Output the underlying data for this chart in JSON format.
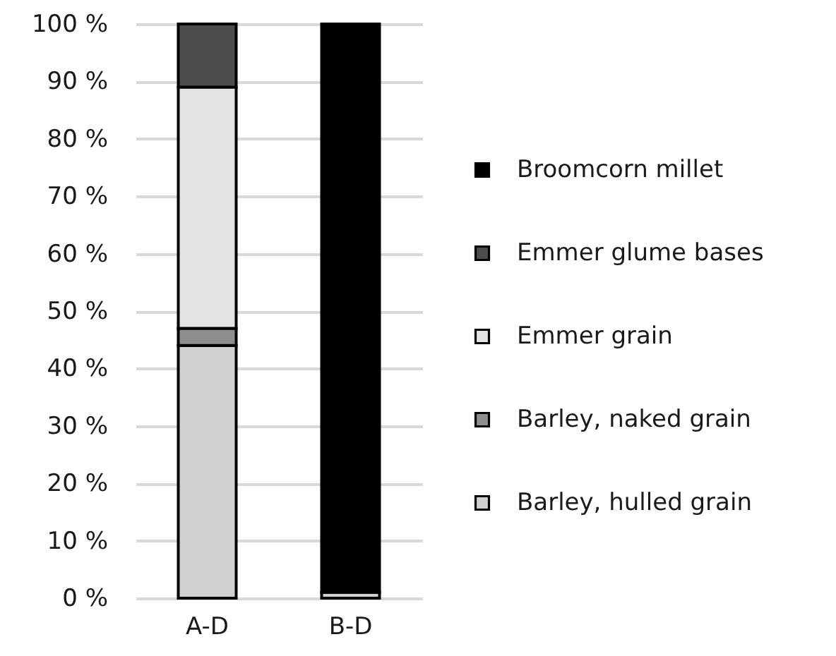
{
  "chart_data": {
    "type": "bar",
    "stacked": true,
    "categories": [
      "A-D",
      "B-D"
    ],
    "series": [
      {
        "name": "Barley, hulled grain",
        "color": "#d0d0d2",
        "values": [
          44,
          1
        ]
      },
      {
        "name": "Barley, naked grain",
        "color": "#8e8e8e",
        "values": [
          3,
          null
        ]
      },
      {
        "name": "Emmer grain",
        "color": "#e4e4e6",
        "values": [
          42,
          null
        ]
      },
      {
        "name": "Emmer glume bases",
        "color": "#4d4d4d",
        "values": [
          11,
          null
        ]
      },
      {
        "name": "Broomcorn millet",
        "color": "#000000",
        "values": [
          null,
          99
        ]
      }
    ],
    "ylim": [
      0,
      100
    ],
    "yticks": [
      {
        "value": 0,
        "label": "0 %"
      },
      {
        "value": 10,
        "label": "10 %"
      },
      {
        "value": 20,
        "label": "20 %"
      },
      {
        "value": 30,
        "label": "30 %"
      },
      {
        "value": 40,
        "label": "40 %"
      },
      {
        "value": 50,
        "label": "50 %"
      },
      {
        "value": 60,
        "label": "60 %"
      },
      {
        "value": 70,
        "label": "70 %"
      },
      {
        "value": 80,
        "label": "80 %"
      },
      {
        "value": 90,
        "label": "90 %"
      },
      {
        "value": 100,
        "label": "100 %"
      }
    ],
    "grid": "y",
    "legend": "right"
  }
}
